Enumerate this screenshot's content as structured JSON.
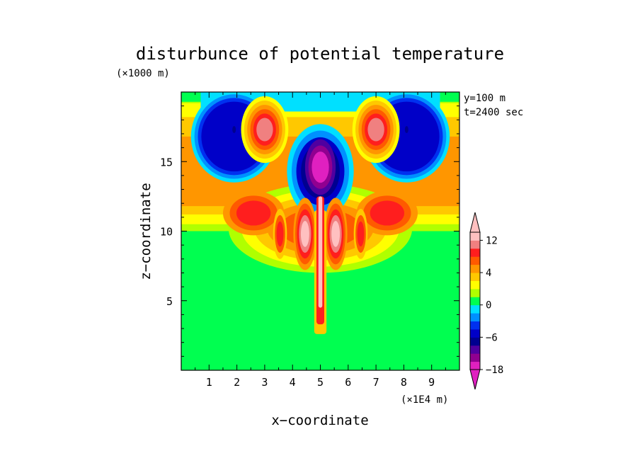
{
  "chart_data": {
    "type": "heatmap",
    "title": "disturbunce of potential temperature",
    "xlabel": "x−coordinate",
    "ylabel": "z−coordinate",
    "x_unit": "(×1E4 m)",
    "y_unit": "(×1000 m)",
    "annotations": [
      "y=100 m",
      "t=2400 sec"
    ],
    "xlim": [
      0,
      10
    ],
    "ylim": [
      0,
      20
    ],
    "x_ticks": [
      1,
      2,
      3,
      4,
      5,
      6,
      7,
      8,
      9
    ],
    "y_ticks": [
      5,
      10,
      15
    ],
    "colorbar": {
      "levels": [
        -18,
        -15,
        -12,
        -9,
        -6,
        -4.5,
        -3,
        -1.5,
        0,
        1,
        2,
        3,
        4,
        6,
        8,
        10,
        12
      ],
      "colors": [
        "#e020c0",
        "#900090",
        "#5000a0",
        "#000090",
        "#0000c8",
        "#0030f0",
        "#0090ff",
        "#00e0ff",
        "#00ff50",
        "#b0ff00",
        "#ffff00",
        "#ffc800",
        "#ff9600",
        "#ff5a00",
        "#ff1e1e",
        "#f08080",
        "#ffc0c0"
      ],
      "labels": [
        {
          "value": 12,
          "text": "12"
        },
        {
          "value": 4,
          "text": "4"
        },
        {
          "value": 0,
          "text": "0"
        },
        {
          "value": -6,
          "text": "−6"
        },
        {
          "value": -18,
          "text": "−18"
        }
      ]
    },
    "features": [
      {
        "name": "background",
        "level": 0
      },
      {
        "name": "upper-warm-layer",
        "x": [
          0,
          10
        ],
        "y": [
          10,
          20
        ],
        "level": 3
      },
      {
        "name": "updraft-column",
        "x": 5.0,
        "y": [
          2.5,
          13
        ],
        "level": 12
      },
      {
        "name": "left-cold-lobe",
        "x": 1.8,
        "y": 17.2,
        "level": -6
      },
      {
        "name": "right-cold-lobe",
        "x": 8.2,
        "y": 17.2,
        "level": -6
      },
      {
        "name": "central-cold-core",
        "x": 5.0,
        "y": 14.5,
        "level": -18
      },
      {
        "name": "left-warm-pocket",
        "x": 3.0,
        "y": 17.5,
        "level": 12
      },
      {
        "name": "right-warm-pocket",
        "x": 7.0,
        "y": 17.5,
        "level": 12
      },
      {
        "name": "left-warm-cell",
        "x": 4.45,
        "y": 9.8,
        "level": 12
      },
      {
        "name": "right-warm-cell",
        "x": 5.55,
        "y": 9.8,
        "level": 12
      }
    ]
  }
}
